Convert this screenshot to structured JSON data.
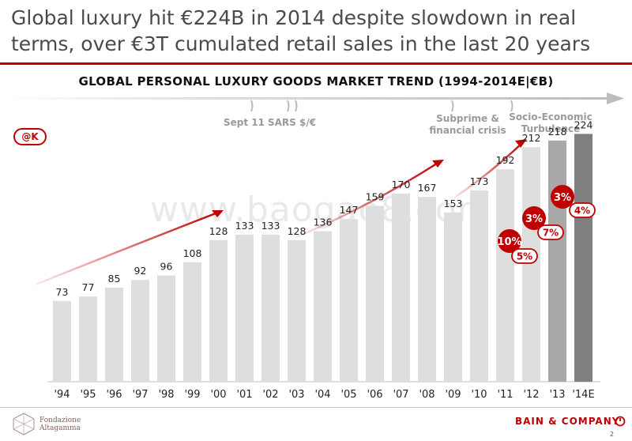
{
  "title": "Global luxury hit €224B in 2014 despite slowdown in real terms, over €3T cumulated retail sales in the last 20 years",
  "subtitle": "GLOBAL PERSONAL LUXURY GOODS MARKET TREND (1994-2014E|€B)",
  "badge": "@K",
  "watermark": "www.baogao8.com",
  "events": {
    "sept11": "Sept 11",
    "sars": "SARS $/€",
    "subprime": "Subprime &\nfinancial crisis",
    "socio": "Socio-Economic\nTurbulence"
  },
  "colors": {
    "accent": "#c00000",
    "bar": "#dedede",
    "bar2013": "#a8a8a8",
    "bar2014": "#7f7f7f"
  },
  "chart_data": {
    "type": "bar",
    "title": "GLOBAL PERSONAL LUXURY GOODS MARKET TREND (1994-2014E|€B)",
    "xlabel": "",
    "ylabel": "€B",
    "categories": [
      "'94",
      "'95",
      "'96",
      "'97",
      "'98",
      "'99",
      "'00",
      "'01",
      "'02",
      "'03",
      "'04",
      "'05",
      "'06",
      "'07",
      "'08",
      "'09",
      "'10",
      "'11",
      "'12",
      "'13",
      "'14E"
    ],
    "values": [
      73,
      77,
      85,
      92,
      96,
      108,
      128,
      133,
      133,
      128,
      136,
      147,
      159,
      170,
      167,
      153,
      173,
      192,
      212,
      218,
      224
    ],
    "ylim": [
      0,
      240
    ],
    "annotations": {
      "filled": [
        {
          "label": "10%",
          "year": "'12"
        },
        {
          "label": "3%",
          "year": "'13"
        },
        {
          "label": "3%",
          "year": "'14E"
        }
      ],
      "outlined": [
        {
          "label": "5%",
          "year": "'12"
        },
        {
          "label": "7%",
          "year": "'13"
        },
        {
          "label": "4%",
          "year": "'14E"
        }
      ]
    }
  },
  "footer": {
    "left_line1": "Fondazione",
    "left_line2": "Altagamma",
    "right": "BAIN & COMPANY",
    "page": "2"
  }
}
